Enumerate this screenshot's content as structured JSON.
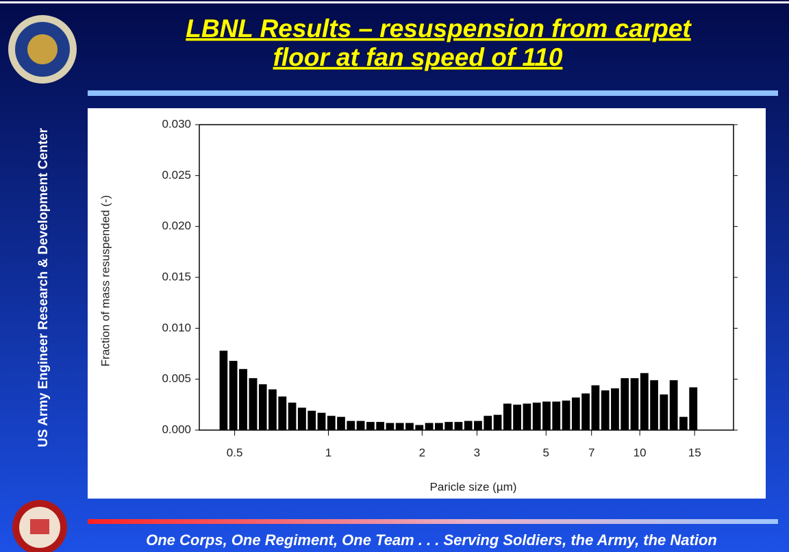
{
  "slide": {
    "title_lines": [
      "LBNL Results – resuspension from carpet",
      "floor at fan speed of 110"
    ],
    "side_text": "US Army Engineer Research & Development Center",
    "footer": "One Corps, One Regiment, One Team . . . Serving Soldiers, the Army, the Nation"
  },
  "chart_data": {
    "type": "histogram",
    "xlabel": "Paricle size (µm)",
    "ylabel": "Fraction of mass resuspended (-)",
    "color": "#000000",
    "log_x": true,
    "bins": [
      0.445,
      0.478,
      0.514,
      0.553,
      0.595,
      0.639,
      0.687,
      0.739,
      0.794,
      0.854,
      0.918,
      0.987,
      1.061,
      1.14,
      1.226,
      1.318,
      1.417,
      1.523,
      1.637,
      1.76,
      1.892,
      2.034,
      2.187,
      2.351,
      2.527,
      2.717,
      2.92,
      3.139,
      3.375,
      3.628,
      3.9,
      4.193,
      4.507,
      4.845,
      5.209,
      5.6,
      6.02,
      6.471,
      6.957,
      7.479,
      8.04,
      8.643,
      9.291,
      9.988,
      10.74,
      11.54,
      12.41,
      13.34,
      14.34,
      15.42
    ],
    "values": [
      0.0078,
      0.0068,
      0.006,
      0.0051,
      0.0045,
      0.004,
      0.0033,
      0.0027,
      0.0022,
      0.0019,
      0.0017,
      0.0014,
      0.0013,
      0.0009,
      0.0009,
      0.0008,
      0.0008,
      0.0007,
      0.0007,
      0.0007,
      0.0005,
      0.0007,
      0.0007,
      0.0008,
      0.0008,
      0.0009,
      0.0009,
      0.0014,
      0.0015,
      0.0026,
      0.0025,
      0.0026,
      0.0027,
      0.0028,
      0.0028,
      0.0029,
      0.0032,
      0.0036,
      0.0044,
      0.0039,
      0.0041,
      0.0051,
      0.0051,
      0.0056,
      0.0049,
      0.0035,
      0.0049,
      0.0013,
      0.0042
    ],
    "xlim": [
      0.385,
      20
    ],
    "xticks": [
      0.5,
      1,
      2,
      3,
      5,
      7,
      10,
      15
    ],
    "ylim": [
      0,
      0.03
    ],
    "yticks": [
      {
        "value": 0,
        "label": "0.000"
      },
      {
        "value": 0.005,
        "label": "0.005"
      },
      {
        "value": 0.01,
        "label": "0.010"
      },
      {
        "value": 0.015,
        "label": "0.015"
      },
      {
        "value": 0.02,
        "label": "0.020"
      },
      {
        "value": 0.025,
        "label": "0.025"
      },
      {
        "value": 0.03,
        "label": "0.030"
      }
    ]
  }
}
